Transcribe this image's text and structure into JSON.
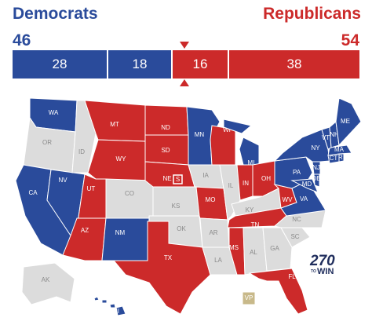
{
  "header": {
    "dem_label": "Democrats",
    "rep_label": "Republicans",
    "dem_total": "46",
    "rep_total": "54"
  },
  "bar": {
    "dem_safe": "28",
    "dem_contested": "18",
    "rep_contested": "16",
    "rep_safe": "38",
    "total": 100
  },
  "colors": {
    "dem": "#2a4b9b",
    "rep": "#cc2a2a",
    "none": "#dcdcdc",
    "vp": "#c8b98a",
    "border": "#ffffff"
  },
  "logo": {
    "number": "270",
    "to": "TO",
    "win": "WIN"
  },
  "states": [
    {
      "code": "WA",
      "status": "dem"
    },
    {
      "code": "OR",
      "status": "none"
    },
    {
      "code": "CA",
      "status": "dem"
    },
    {
      "code": "NV",
      "status": "dem"
    },
    {
      "code": "ID",
      "status": "none"
    },
    {
      "code": "MT",
      "status": "rep"
    },
    {
      "code": "WY",
      "status": "rep"
    },
    {
      "code": "UT",
      "status": "rep"
    },
    {
      "code": "AZ",
      "status": "rep"
    },
    {
      "code": "CO",
      "status": "none"
    },
    {
      "code": "NM",
      "status": "dem"
    },
    {
      "code": "ND",
      "status": "rep"
    },
    {
      "code": "SD",
      "status": "rep"
    },
    {
      "code": "NE",
      "status": "rep"
    },
    {
      "code": "S",
      "status": "rep"
    },
    {
      "code": "KS",
      "status": "none"
    },
    {
      "code": "OK",
      "status": "none"
    },
    {
      "code": "TX",
      "status": "rep"
    },
    {
      "code": "MN",
      "status": "dem"
    },
    {
      "code": "IA",
      "status": "none"
    },
    {
      "code": "MO",
      "status": "rep"
    },
    {
      "code": "AR",
      "status": "none"
    },
    {
      "code": "LA",
      "status": "none"
    },
    {
      "code": "WI",
      "status": "rep"
    },
    {
      "code": "IL",
      "status": "none"
    },
    {
      "code": "MI",
      "status": "dem"
    },
    {
      "code": "IN",
      "status": "rep"
    },
    {
      "code": "OH",
      "status": "rep"
    },
    {
      "code": "KY",
      "status": "none"
    },
    {
      "code": "TN",
      "status": "rep"
    },
    {
      "code": "MS",
      "status": "rep"
    },
    {
      "code": "AL",
      "status": "none"
    },
    {
      "code": "GA",
      "status": "none"
    },
    {
      "code": "FL",
      "status": "rep"
    },
    {
      "code": "SC",
      "status": "none"
    },
    {
      "code": "NC",
      "status": "none"
    },
    {
      "code": "VA",
      "status": "dem"
    },
    {
      "code": "WV",
      "status": "rep"
    },
    {
      "code": "PA",
      "status": "dem"
    },
    {
      "code": "NY",
      "status": "dem"
    },
    {
      "code": "VT",
      "status": "dem"
    },
    {
      "code": "NH",
      "status": "dem"
    },
    {
      "code": "ME",
      "status": "dem"
    },
    {
      "code": "MA",
      "status": "dem"
    },
    {
      "code": "CT",
      "status": "dem"
    },
    {
      "code": "RI",
      "status": "dem"
    },
    {
      "code": "NJ",
      "status": "dem"
    },
    {
      "code": "DE",
      "status": "dem"
    },
    {
      "code": "MD",
      "status": "dem"
    },
    {
      "code": "AK",
      "status": "none"
    },
    {
      "code": "HI",
      "status": "dem"
    },
    {
      "code": "VP",
      "status": "vp"
    }
  ]
}
